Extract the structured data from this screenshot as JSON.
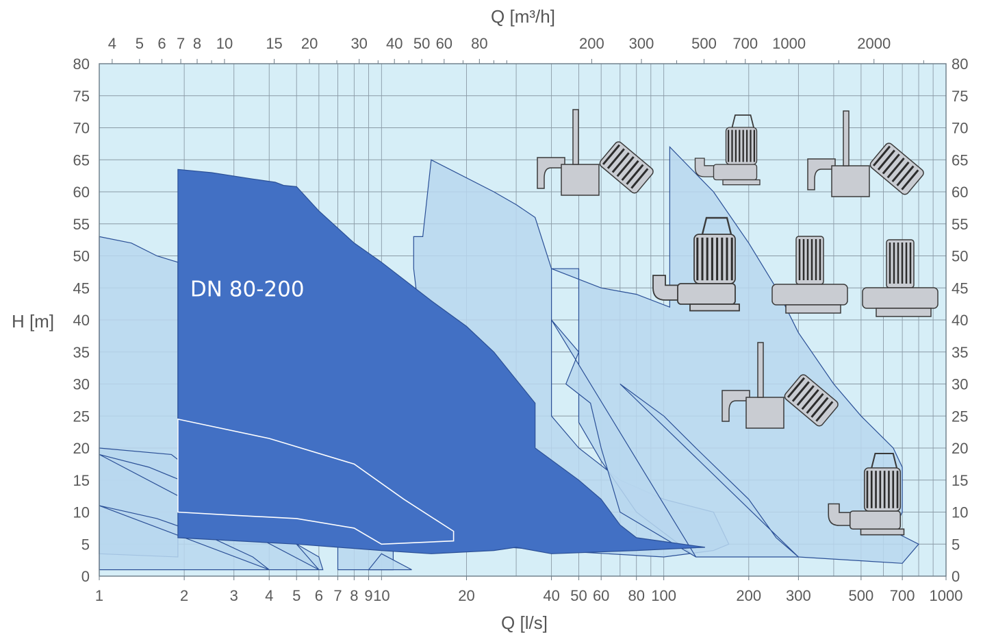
{
  "colors": {
    "plot_bg": "#d6eef7",
    "grid": "#8a9aa6",
    "frame": "#6a7a86",
    "region_light": "#b9d7ee",
    "region_dark": "#4270c4",
    "region_edge": "#2a4f96",
    "pump": "#c9ccd2",
    "pump_dark": "#2c2c2c"
  },
  "chart_data": {
    "type": "area",
    "xlabel": "Q [l/s]",
    "x2label": "Q [m³/h]",
    "ylabel": "H [m]",
    "xscale": "log",
    "xlim": [
      1,
      1000
    ],
    "ylim": [
      0,
      80
    ],
    "grid": true,
    "bottom_ticks": [
      "1",
      "2",
      "3",
      "4",
      "5",
      "6",
      "7",
      "8",
      "9",
      "10",
      "20",
      "40",
      "50",
      "60",
      "80",
      "100",
      "200",
      "300",
      "500",
      "700",
      "1000"
    ],
    "bottom_tick_values": [
      1,
      2,
      3,
      4,
      5,
      6,
      7,
      8,
      9,
      10,
      20,
      40,
      50,
      60,
      80,
      100,
      200,
      300,
      500,
      700,
      1000
    ],
    "top_ticks": [
      "4",
      "5",
      "6",
      "7",
      "8",
      "10",
      "15",
      "20",
      "30",
      "40",
      "50",
      "60",
      "80",
      "200",
      "300",
      "500",
      "700",
      "1000",
      "2000"
    ],
    "top_tick_values": [
      4,
      5,
      6,
      7,
      8,
      10,
      15,
      20,
      30,
      40,
      50,
      60,
      80,
      200,
      300,
      500,
      700,
      1000,
      2000
    ],
    "y_ticks": [
      "0",
      "5",
      "10",
      "15",
      "20",
      "25",
      "30",
      "35",
      "40",
      "45",
      "50",
      "55",
      "60",
      "65",
      "70",
      "75",
      "80"
    ],
    "y_tick_values": [
      0,
      5,
      10,
      15,
      20,
      25,
      30,
      35,
      40,
      45,
      50,
      55,
      60,
      65,
      70,
      75,
      80
    ],
    "series": [
      {
        "style": "light",
        "points": [
          [
            1,
            3.5
          ],
          [
            1,
            53
          ],
          [
            1.3,
            52
          ],
          [
            1.6,
            50
          ],
          [
            1.9,
            49
          ],
          [
            1.9,
            6
          ],
          [
            1.9,
            3
          ],
          [
            1,
            3.5
          ]
        ]
      },
      {
        "style": "light",
        "points": [
          [
            1,
            20
          ],
          [
            1.8,
            19
          ],
          [
            2.2,
            16
          ],
          [
            3,
            12
          ],
          [
            4,
            8
          ],
          [
            5,
            5
          ],
          [
            6,
            3
          ],
          [
            6.2,
            1
          ],
          [
            1,
            1
          ],
          [
            1,
            20
          ]
        ]
      },
      {
        "style": "light",
        "points": [
          [
            1,
            19
          ],
          [
            1.5,
            17
          ],
          [
            2.2,
            14
          ],
          [
            3.5,
            9
          ],
          [
            5,
            5
          ],
          [
            6,
            1
          ]
        ]
      },
      {
        "style": "light",
        "points": [
          [
            1,
            11
          ],
          [
            1.6,
            9
          ],
          [
            2.5,
            6
          ],
          [
            3.5,
            3
          ],
          [
            4,
            1
          ]
        ]
      },
      {
        "style": "light",
        "points": [
          [
            7,
            6
          ],
          [
            7.5,
            5
          ],
          [
            11,
            4.5
          ],
          [
            11,
            1
          ],
          [
            7,
            1
          ]
        ]
      },
      {
        "style": "light",
        "points": [
          [
            10,
            3.5
          ],
          [
            12.8,
            1
          ],
          [
            9,
            1
          ]
        ]
      },
      {
        "style": "light",
        "points": [
          [
            17,
            5
          ],
          [
            20,
            5
          ],
          [
            40,
            4
          ],
          [
            100,
            3
          ],
          [
            150,
            4
          ],
          [
            170,
            5
          ],
          [
            150,
            10
          ],
          [
            100,
            12
          ],
          [
            70,
            15
          ],
          [
            50,
            20
          ],
          [
            40,
            25
          ],
          [
            40,
            30
          ],
          [
            40,
            48
          ],
          [
            35,
            56
          ],
          [
            30,
            58
          ],
          [
            25,
            60
          ],
          [
            15,
            65
          ],
          [
            14,
            53
          ],
          [
            13,
            53
          ],
          [
            13,
            48
          ],
          [
            17,
            5
          ]
        ]
      },
      {
        "style": "light",
        "points": [
          [
            40,
            48
          ],
          [
            60,
            45
          ],
          [
            80,
            44
          ],
          [
            105,
            42
          ],
          [
            105,
            67
          ],
          [
            150,
            60
          ],
          [
            200,
            52
          ],
          [
            250,
            45
          ],
          [
            300,
            38
          ],
          [
            400,
            30
          ],
          [
            500,
            25
          ],
          [
            650,
            20
          ],
          [
            700,
            17
          ],
          [
            700,
            10
          ],
          [
            650,
            7
          ],
          [
            800,
            5
          ],
          [
            700,
            2
          ],
          [
            300,
            3
          ],
          [
            130,
            3
          ],
          [
            80,
            10
          ],
          [
            60,
            18
          ],
          [
            50,
            24
          ],
          [
            50,
            30
          ],
          [
            50,
            48
          ],
          [
            40,
            48
          ]
        ]
      },
      {
        "style": "light",
        "points": [
          [
            40,
            40
          ],
          [
            50,
            35
          ],
          [
            45,
            30
          ],
          [
            55,
            27
          ],
          [
            60,
            20
          ],
          [
            70,
            10
          ],
          [
            130,
            3
          ]
        ]
      },
      {
        "style": "light",
        "points": [
          [
            70,
            30
          ],
          [
            100,
            25
          ],
          [
            130,
            20
          ],
          [
            200,
            12
          ],
          [
            250,
            6
          ],
          [
            300,
            3
          ]
        ]
      },
      {
        "style": "dark",
        "points": [
          [
            1.9,
            63.5
          ],
          [
            2.5,
            63
          ],
          [
            3.5,
            62
          ],
          [
            4.2,
            61.5
          ],
          [
            4.5,
            61
          ],
          [
            5,
            60.8
          ],
          [
            6,
            57
          ],
          [
            8,
            52
          ],
          [
            10,
            49
          ],
          [
            15,
            43
          ],
          [
            20,
            39
          ],
          [
            25,
            35
          ],
          [
            35,
            27
          ],
          [
            35,
            20
          ],
          [
            50,
            15
          ],
          [
            60,
            12
          ],
          [
            70,
            8
          ],
          [
            80,
            6
          ],
          [
            140,
            4.5
          ],
          [
            80,
            4
          ],
          [
            40,
            3.5
          ],
          [
            30,
            4.5
          ],
          [
            25,
            4
          ],
          [
            15,
            3.5
          ],
          [
            10,
            4
          ],
          [
            5,
            5
          ],
          [
            1.9,
            6
          ],
          [
            1.9,
            63.5
          ]
        ]
      }
    ],
    "outline_series": [
      {
        "points": [
          [
            1.9,
            24.5
          ],
          [
            4,
            21.5
          ],
          [
            8,
            17.5
          ],
          [
            12,
            12
          ],
          [
            18,
            7
          ],
          [
            18,
            5.5
          ],
          [
            10,
            5
          ],
          [
            8,
            7.5
          ],
          [
            5,
            9
          ],
          [
            3,
            9.5
          ],
          [
            1.9,
            10
          ],
          [
            1.9,
            24.5
          ]
        ]
      }
    ],
    "annotations": [
      {
        "text": "DN 80-200",
        "x": 2.1,
        "y": 45
      }
    ]
  }
}
